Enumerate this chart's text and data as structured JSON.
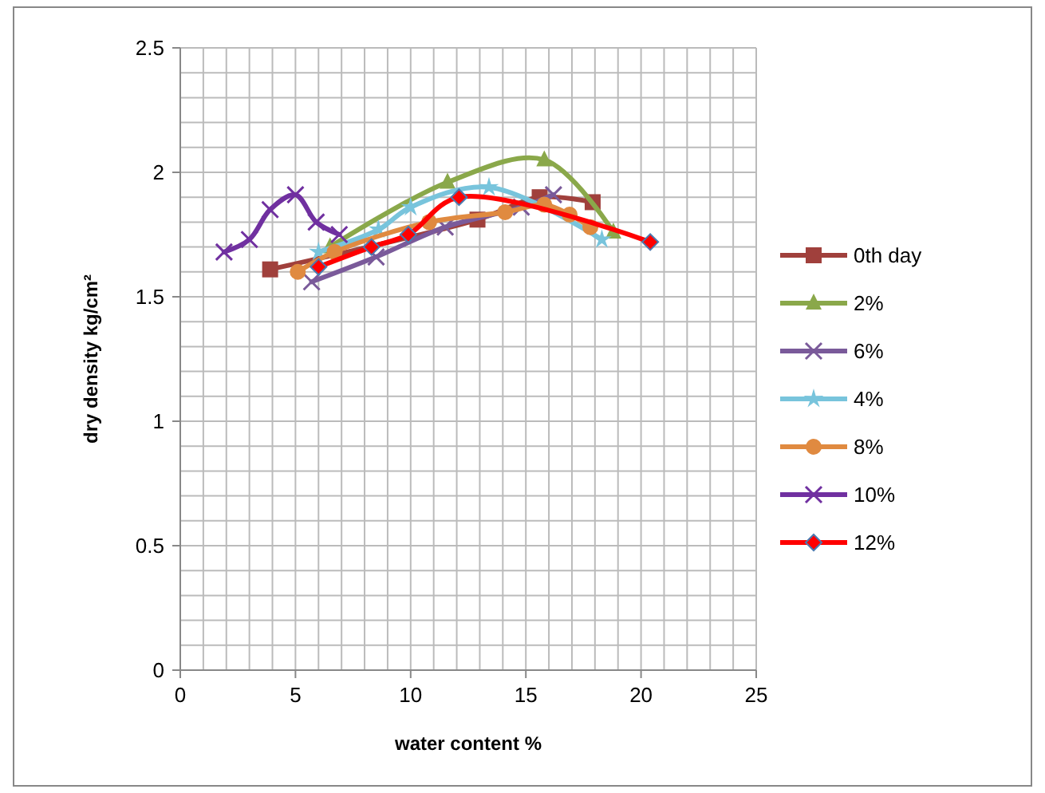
{
  "chart_data": {
    "type": "line",
    "xlabel": "water content %",
    "ylabel": "dry density kg/cm²",
    "xlim": [
      0,
      25
    ],
    "xticks": [
      0,
      5,
      10,
      15,
      20,
      25
    ],
    "ylim": [
      0,
      2.5
    ],
    "yticks": [
      0,
      {
        "value": 0.5,
        "label": "0.5"
      },
      1,
      {
        "value": 1.5,
        "label": "1.5"
      },
      2,
      {
        "value": 2.5,
        "label": "2.5"
      }
    ],
    "grid": true,
    "legend": "right",
    "series": [
      {
        "name": "0th day",
        "color": "#a0403c",
        "marker": "square",
        "x": [
          3.9,
          12.9,
          15.6,
          17.9
        ],
        "values": [
          1.61,
          1.81,
          1.9,
          1.88
        ]
      },
      {
        "name": "2%",
        "color": "#8aa84a",
        "marker": "triangle",
        "x": [
          6.5,
          11.6,
          15.8,
          18.8
        ],
        "values": [
          1.7,
          1.96,
          2.05,
          1.76
        ]
      },
      {
        "name": "6%",
        "color": "#7a5a9a",
        "marker": "cross",
        "x": [
          5.7,
          8.5,
          11.5,
          14.8,
          16.2
        ],
        "values": [
          1.56,
          1.66,
          1.78,
          1.86,
          1.91
        ]
      },
      {
        "name": "4%",
        "color": "#78c4dc",
        "marker": "star",
        "x": [
          6.0,
          8.6,
          10.0,
          13.4,
          18.3
        ],
        "values": [
          1.68,
          1.77,
          1.86,
          1.94,
          1.73
        ]
      },
      {
        "name": "8%",
        "color": "#e08a40",
        "marker": "circle",
        "x": [
          5.1,
          6.7,
          10.8,
          14.1,
          15.8,
          16.9,
          17.8
        ],
        "values": [
          1.6,
          1.68,
          1.8,
          1.84,
          1.87,
          1.83,
          1.78
        ]
      },
      {
        "name": "10%",
        "color": "#7030a0",
        "marker": "cross",
        "x": [
          1.9,
          3.0,
          3.9,
          5.0,
          5.9,
          6.9
        ],
        "values": [
          1.68,
          1.73,
          1.85,
          1.91,
          1.8,
          1.75
        ]
      },
      {
        "name": "12%",
        "color": "#ff0000",
        "marker": "diamond",
        "x": [
          6.0,
          8.3,
          9.9,
          12.1,
          20.4
        ],
        "values": [
          1.62,
          1.7,
          1.75,
          1.9,
          1.72
        ]
      }
    ]
  }
}
